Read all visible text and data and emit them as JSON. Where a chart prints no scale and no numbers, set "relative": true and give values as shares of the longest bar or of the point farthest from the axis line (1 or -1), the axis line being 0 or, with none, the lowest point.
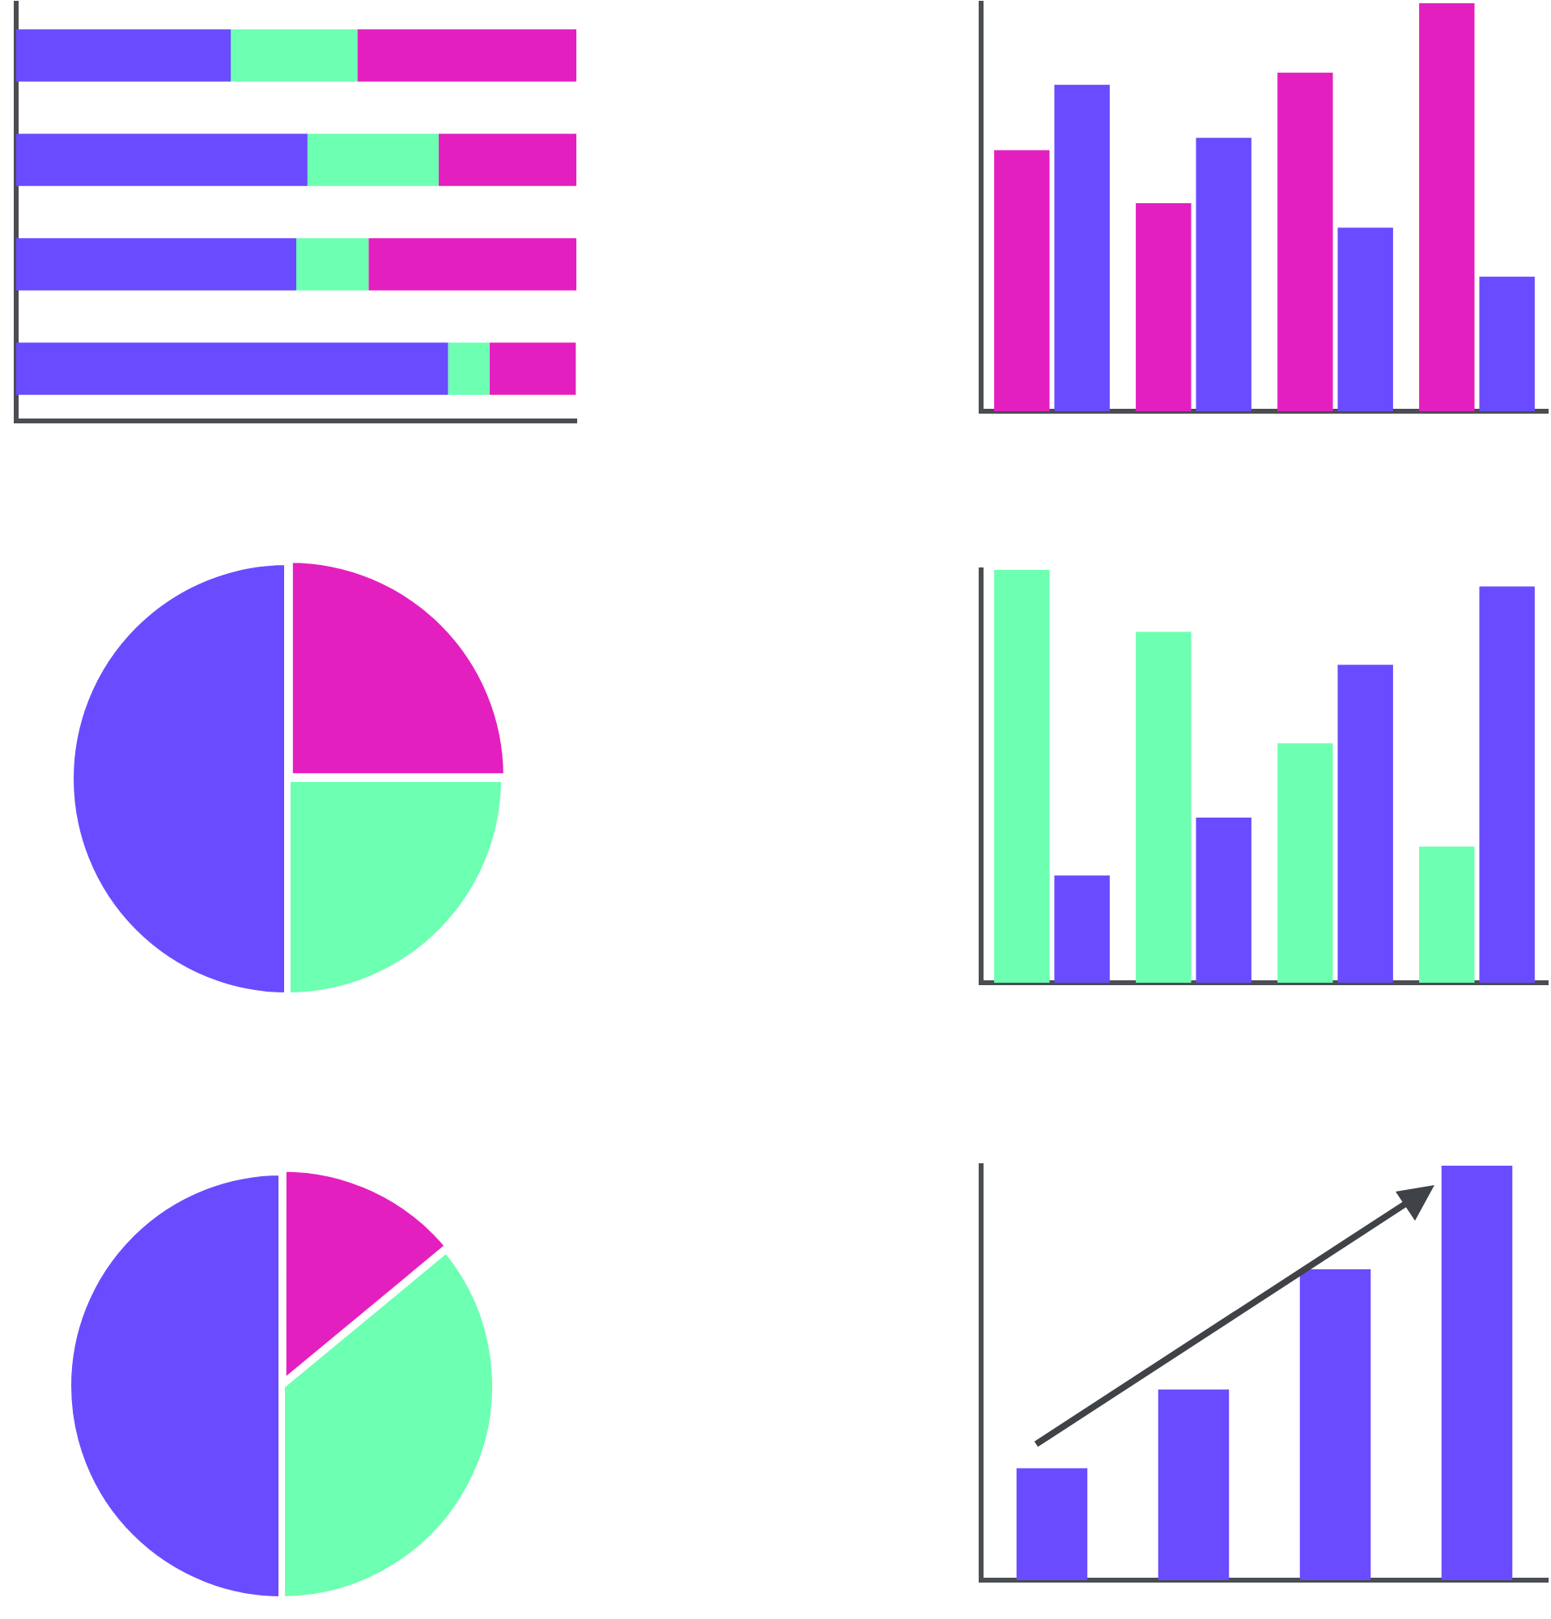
{
  "chart_data": [
    {
      "type": "bar",
      "orientation": "horizontal",
      "stacked": true,
      "relative": true,
      "categories": [
        null,
        null,
        null,
        null
      ],
      "series": [
        {
          "color": "#6a4bff",
          "values": [
            0.383,
            0.52,
            0.5,
            0.771
          ]
        },
        {
          "color": "#6dffb2",
          "values": [
            0.226,
            0.234,
            0.129,
            0.074
          ]
        },
        {
          "color": "#e41fc0",
          "values": [
            0.391,
            0.246,
            0.371,
            0.154
          ]
        }
      ]
    },
    {
      "type": "bar",
      "relative": true,
      "categories": [
        null,
        null,
        null,
        null
      ],
      "series": [
        {
          "color": "#e41fc0",
          "values": [
            0.64,
            0.51,
            0.83,
            1
          ]
        },
        {
          "color": "#6a4bff",
          "values": [
            0.8,
            0.67,
            0.45,
            0.33
          ]
        }
      ]
    },
    {
      "type": "pie",
      "categories": [
        null,
        null,
        null
      ],
      "values": [
        25,
        25,
        50
      ],
      "colors": [
        "#e41fc0",
        "#6dffb2",
        "#6a4bff"
      ]
    },
    {
      "type": "bar",
      "relative": true,
      "categories": [
        null,
        null,
        null,
        null
      ],
      "series": [
        {
          "color": "#6dffb2",
          "values": [
            1,
            0.85,
            0.58,
            0.33
          ]
        },
        {
          "color": "#6a4bff",
          "values": [
            0.26,
            0.4,
            0.77,
            0.96
          ]
        }
      ]
    },
    {
      "type": "pie",
      "categories": [
        null,
        null,
        null
      ],
      "values": [
        14,
        36,
        50
      ],
      "colors": [
        "#e41fc0",
        "#6dffb2",
        "#6a4bff"
      ]
    },
    {
      "type": "bar",
      "relative": true,
      "categories": [
        null,
        null,
        null,
        null
      ],
      "series": [
        {
          "color": "#6a4bff",
          "values": [
            0.27,
            0.46,
            0.75,
            1
          ]
        }
      ]
    }
  ]
}
